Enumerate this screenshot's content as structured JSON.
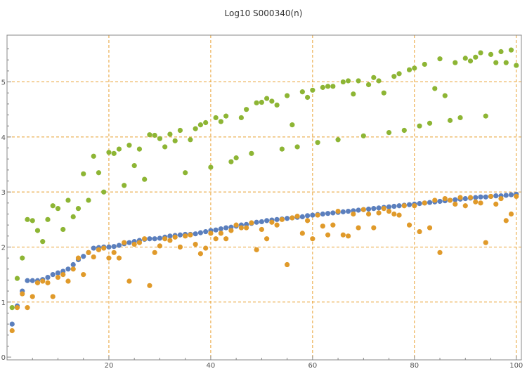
{
  "chart_data": {
    "type": "scatter",
    "title": "Log10 S000340(n)",
    "xlabel": "",
    "ylabel": "",
    "xlim": [
      0,
      101
    ],
    "ylim": [
      -0.05,
      5.85
    ],
    "grid": true,
    "legend": "none",
    "x_ticks": [
      20,
      40,
      60,
      80,
      100
    ],
    "y_ticks": [
      0,
      1,
      2,
      3,
      4,
      5
    ],
    "x_tick_labels": [
      "20",
      "40",
      "60",
      "80",
      "100"
    ],
    "y_tick_labels": [
      "0",
      "1",
      "2",
      "3",
      "4",
      "5"
    ],
    "colors": {
      "grid": "#e8a030",
      "axis": "#888888"
    },
    "series": [
      {
        "color": "#5b7fbd",
        "points": [
          [
            1,
            0.6
          ],
          [
            2,
            0.93
          ],
          [
            3,
            1.2
          ],
          [
            4,
            1.39
          ],
          [
            5,
            1.39
          ],
          [
            6,
            1.39
          ],
          [
            7,
            1.41
          ],
          [
            8,
            1.45
          ],
          [
            9,
            1.5
          ],
          [
            10,
            1.53
          ],
          [
            11,
            1.56
          ],
          [
            12,
            1.6
          ],
          [
            13,
            1.68
          ],
          [
            14,
            1.77
          ],
          [
            15,
            1.83
          ],
          [
            16,
            1.9
          ],
          [
            17,
            1.98
          ],
          [
            18,
            1.99
          ],
          [
            19,
            2.0
          ],
          [
            20,
            2.0
          ],
          [
            21,
            2.01
          ],
          [
            22,
            2.03
          ],
          [
            23,
            2.06
          ],
          [
            24,
            2.08
          ],
          [
            25,
            2.1
          ],
          [
            26,
            2.12
          ],
          [
            27,
            2.14
          ],
          [
            28,
            2.15
          ],
          [
            29,
            2.15
          ],
          [
            30,
            2.16
          ],
          [
            31,
            2.18
          ],
          [
            32,
            2.2
          ],
          [
            33,
            2.21
          ],
          [
            34,
            2.22
          ],
          [
            35,
            2.23
          ],
          [
            36,
            2.23
          ],
          [
            37,
            2.24
          ],
          [
            38,
            2.26
          ],
          [
            39,
            2.28
          ],
          [
            40,
            2.3
          ],
          [
            41,
            2.31
          ],
          [
            42,
            2.33
          ],
          [
            43,
            2.35
          ],
          [
            44,
            2.36
          ],
          [
            45,
            2.38
          ],
          [
            46,
            2.4
          ],
          [
            47,
            2.41
          ],
          [
            48,
            2.43
          ],
          [
            49,
            2.45
          ],
          [
            50,
            2.46
          ],
          [
            51,
            2.48
          ],
          [
            52,
            2.49
          ],
          [
            53,
            2.5
          ],
          [
            54,
            2.51
          ],
          [
            55,
            2.52
          ],
          [
            56,
            2.53
          ],
          [
            57,
            2.54
          ],
          [
            58,
            2.55
          ],
          [
            59,
            2.57
          ],
          [
            60,
            2.58
          ],
          [
            61,
            2.59
          ],
          [
            62,
            2.6
          ],
          [
            63,
            2.61
          ],
          [
            64,
            2.62
          ],
          [
            65,
            2.63
          ],
          [
            66,
            2.64
          ],
          [
            67,
            2.65
          ],
          [
            68,
            2.66
          ],
          [
            69,
            2.67
          ],
          [
            70,
            2.68
          ],
          [
            71,
            2.69
          ],
          [
            72,
            2.7
          ],
          [
            73,
            2.71
          ],
          [
            74,
            2.72
          ],
          [
            75,
            2.73
          ],
          [
            76,
            2.74
          ],
          [
            77,
            2.75
          ],
          [
            78,
            2.76
          ],
          [
            79,
            2.77
          ],
          [
            80,
            2.78
          ],
          [
            81,
            2.79
          ],
          [
            82,
            2.8
          ],
          [
            83,
            2.81
          ],
          [
            84,
            2.82
          ],
          [
            85,
            2.83
          ],
          [
            86,
            2.84
          ],
          [
            87,
            2.85
          ],
          [
            88,
            2.86
          ],
          [
            89,
            2.87
          ],
          [
            90,
            2.88
          ],
          [
            91,
            2.89
          ],
          [
            92,
            2.9
          ],
          [
            93,
            2.91
          ],
          [
            94,
            2.91
          ],
          [
            95,
            2.92
          ],
          [
            96,
            2.93
          ],
          [
            97,
            2.93
          ],
          [
            98,
            2.94
          ],
          [
            99,
            2.95
          ],
          [
            100,
            2.96
          ]
        ]
      },
      {
        "color": "#e09a2a",
        "points": [
          [
            1,
            0.48
          ],
          [
            2,
            0.9
          ],
          [
            3,
            1.15
          ],
          [
            4,
            0.9
          ],
          [
            5,
            1.1
          ],
          [
            6,
            1.35
          ],
          [
            7,
            1.38
          ],
          [
            8,
            1.35
          ],
          [
            9,
            1.1
          ],
          [
            10,
            1.45
          ],
          [
            11,
            1.5
          ],
          [
            12,
            1.38
          ],
          [
            13,
            1.6
          ],
          [
            14,
            1.8
          ],
          [
            15,
            1.5
          ],
          [
            16,
            1.9
          ],
          [
            17,
            1.82
          ],
          [
            18,
            1.95
          ],
          [
            19,
            1.98
          ],
          [
            20,
            1.8
          ],
          [
            21,
            1.9
          ],
          [
            22,
            1.8
          ],
          [
            23,
            2.08
          ],
          [
            24,
            1.38
          ],
          [
            25,
            2.05
          ],
          [
            26,
            2.08
          ],
          [
            27,
            2.15
          ],
          [
            28,
            1.3
          ],
          [
            29,
            1.9
          ],
          [
            30,
            2.02
          ],
          [
            31,
            2.15
          ],
          [
            32,
            2.12
          ],
          [
            33,
            2.18
          ],
          [
            34,
            2.0
          ],
          [
            35,
            2.2
          ],
          [
            36,
            2.22
          ],
          [
            37,
            2.05
          ],
          [
            38,
            1.88
          ],
          [
            39,
            1.98
          ],
          [
            40,
            2.25
          ],
          [
            41,
            2.15
          ],
          [
            42,
            2.25
          ],
          [
            43,
            2.15
          ],
          [
            44,
            2.3
          ],
          [
            45,
            2.4
          ],
          [
            46,
            2.35
          ],
          [
            47,
            2.35
          ],
          [
            48,
            2.44
          ],
          [
            49,
            1.95
          ],
          [
            50,
            2.32
          ],
          [
            51,
            2.15
          ],
          [
            52,
            2.45
          ],
          [
            53,
            2.4
          ],
          [
            54,
            2.5
          ],
          [
            55,
            1.68
          ],
          [
            56,
            2.53
          ],
          [
            57,
            2.56
          ],
          [
            58,
            2.25
          ],
          [
            59,
            2.48
          ],
          [
            60,
            2.15
          ],
          [
            61,
            2.58
          ],
          [
            62,
            2.38
          ],
          [
            63,
            2.22
          ],
          [
            64,
            2.4
          ],
          [
            65,
            2.65
          ],
          [
            66,
            2.22
          ],
          [
            67,
            2.2
          ],
          [
            68,
            2.6
          ],
          [
            69,
            2.35
          ],
          [
            70,
            2.68
          ],
          [
            71,
            2.6
          ],
          [
            72,
            2.35
          ],
          [
            73,
            2.62
          ],
          [
            74,
            2.7
          ],
          [
            75,
            2.65
          ],
          [
            76,
            2.6
          ],
          [
            77,
            2.58
          ],
          [
            78,
            2.75
          ],
          [
            79,
            2.4
          ],
          [
            80,
            2.75
          ],
          [
            81,
            2.28
          ],
          [
            82,
            2.8
          ],
          [
            83,
            2.35
          ],
          [
            84,
            2.85
          ],
          [
            85,
            1.9
          ],
          [
            86,
            2.88
          ],
          [
            87,
            2.85
          ],
          [
            88,
            2.78
          ],
          [
            89,
            2.9
          ],
          [
            90,
            2.75
          ],
          [
            91,
            2.9
          ],
          [
            92,
            2.82
          ],
          [
            93,
            2.8
          ],
          [
            94,
            2.08
          ],
          [
            95,
            2.92
          ],
          [
            96,
            2.78
          ],
          [
            97,
            2.88
          ],
          [
            98,
            2.48
          ],
          [
            99,
            2.6
          ],
          [
            100,
            2.92
          ]
        ]
      },
      {
        "color": "#8db534",
        "points": [
          [
            1,
            0.9
          ],
          [
            2,
            1.43
          ],
          [
            3,
            1.8
          ],
          [
            4,
            2.5
          ],
          [
            5,
            2.48
          ],
          [
            6,
            2.3
          ],
          [
            7,
            2.1
          ],
          [
            8,
            2.5
          ],
          [
            9,
            2.75
          ],
          [
            10,
            2.7
          ],
          [
            11,
            2.32
          ],
          [
            12,
            2.85
          ],
          [
            13,
            2.55
          ],
          [
            14,
            2.7
          ],
          [
            15,
            3.33
          ],
          [
            16,
            2.85
          ],
          [
            17,
            3.65
          ],
          [
            18,
            3.35
          ],
          [
            19,
            3.0
          ],
          [
            20,
            3.72
          ],
          [
            21,
            3.7
          ],
          [
            22,
            3.78
          ],
          [
            23,
            3.12
          ],
          [
            24,
            3.85
          ],
          [
            25,
            3.48
          ],
          [
            26,
            3.78
          ],
          [
            27,
            3.23
          ],
          [
            28,
            4.04
          ],
          [
            29,
            4.03
          ],
          [
            30,
            3.97
          ],
          [
            31,
            3.82
          ],
          [
            32,
            4.05
          ],
          [
            33,
            3.93
          ],
          [
            34,
            4.12
          ],
          [
            35,
            3.35
          ],
          [
            36,
            3.95
          ],
          [
            37,
            4.15
          ],
          [
            38,
            4.22
          ],
          [
            39,
            4.26
          ],
          [
            40,
            3.45
          ],
          [
            41,
            4.35
          ],
          [
            42,
            4.28
          ],
          [
            43,
            4.38
          ],
          [
            44,
            3.55
          ],
          [
            45,
            3.62
          ],
          [
            46,
            4.35
          ],
          [
            47,
            4.5
          ],
          [
            48,
            3.7
          ],
          [
            49,
            4.62
          ],
          [
            50,
            4.63
          ],
          [
            51,
            4.7
          ],
          [
            52,
            4.65
          ],
          [
            53,
            4.58
          ],
          [
            54,
            3.78
          ],
          [
            55,
            4.75
          ],
          [
            56,
            4.22
          ],
          [
            57,
            3.82
          ],
          [
            58,
            4.82
          ],
          [
            59,
            4.72
          ],
          [
            60,
            4.85
          ],
          [
            61,
            3.9
          ],
          [
            62,
            4.9
          ],
          [
            63,
            4.92
          ],
          [
            64,
            4.92
          ],
          [
            65,
            3.95
          ],
          [
            66,
            5.0
          ],
          [
            67,
            5.02
          ],
          [
            68,
            4.78
          ],
          [
            69,
            5.02
          ],
          [
            70,
            4.02
          ],
          [
            71,
            4.95
          ],
          [
            72,
            5.08
          ],
          [
            73,
            5.02
          ],
          [
            74,
            4.8
          ],
          [
            75,
            4.08
          ],
          [
            76,
            5.1
          ],
          [
            77,
            5.15
          ],
          [
            78,
            4.12
          ],
          [
            79,
            5.22
          ],
          [
            80,
            5.25
          ],
          [
            81,
            4.2
          ],
          [
            82,
            5.32
          ],
          [
            83,
            4.25
          ],
          [
            84,
            4.88
          ],
          [
            85,
            5.42
          ],
          [
            86,
            4.75
          ],
          [
            87,
            4.3
          ],
          [
            88,
            5.35
          ],
          [
            89,
            4.35
          ],
          [
            90,
            5.43
          ],
          [
            91,
            5.38
          ],
          [
            92,
            5.45
          ],
          [
            93,
            5.53
          ],
          [
            94,
            4.38
          ],
          [
            95,
            5.5
          ],
          [
            96,
            5.35
          ],
          [
            97,
            5.55
          ],
          [
            98,
            5.35
          ],
          [
            99,
            5.58
          ],
          [
            100,
            5.3
          ]
        ]
      }
    ]
  }
}
